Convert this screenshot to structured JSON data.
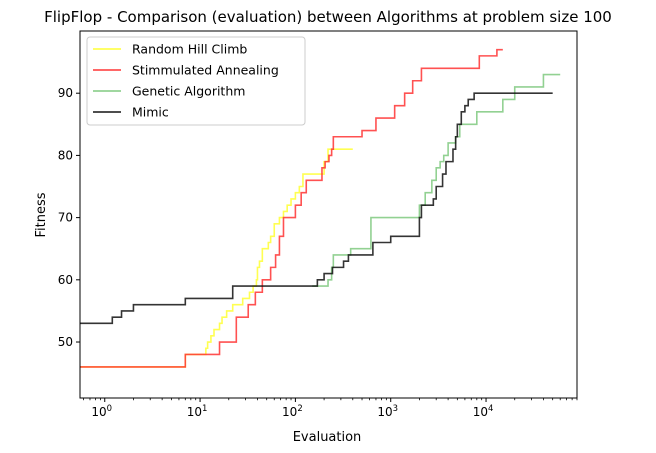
{
  "chart_data": {
    "type": "line",
    "title": "FlipFlop - Comparison (evaluation) between Algorithms at problem size 100",
    "xlabel": "Evaluation",
    "ylabel": "Fitness",
    "xscale": "log",
    "xlim": [
      0.55,
      90000
    ],
    "ylim": [
      41,
      100
    ],
    "yticks": [
      50,
      60,
      70,
      80,
      90
    ],
    "ytick_labels": [
      "50",
      "60",
      "70",
      "80",
      "90"
    ],
    "xticks": [
      1,
      10,
      100,
      1000,
      10000
    ],
    "xtick_labels": [
      {
        "base": "10",
        "exp": "0"
      },
      {
        "base": "10",
        "exp": "1"
      },
      {
        "base": "10",
        "exp": "2"
      },
      {
        "base": "10",
        "exp": "3"
      },
      {
        "base": "10",
        "exp": "4"
      }
    ],
    "grid": false,
    "legend_position": "top-left",
    "series": [
      {
        "name": "Random Hill Climb",
        "color": "#ffff33",
        "points": [
          [
            0.55,
            46
          ],
          [
            6,
            46
          ],
          [
            7,
            48
          ],
          [
            11,
            48
          ],
          [
            11.5,
            49
          ],
          [
            12,
            50
          ],
          [
            13,
            51
          ],
          [
            14,
            52
          ],
          [
            16,
            53
          ],
          [
            17,
            54
          ],
          [
            19,
            55
          ],
          [
            22,
            56
          ],
          [
            26,
            56
          ],
          [
            28,
            57
          ],
          [
            33,
            58
          ],
          [
            36,
            59
          ],
          [
            39,
            60
          ],
          [
            40,
            62
          ],
          [
            42,
            63
          ],
          [
            45,
            65
          ],
          [
            52,
            66
          ],
          [
            55,
            67
          ],
          [
            60,
            69
          ],
          [
            68,
            70
          ],
          [
            75,
            71
          ],
          [
            82,
            72
          ],
          [
            90,
            73
          ],
          [
            100,
            74
          ],
          [
            110,
            75
          ],
          [
            120,
            77
          ],
          [
            180,
            77
          ],
          [
            200,
            79
          ],
          [
            220,
            81
          ],
          [
            400,
            81
          ]
        ]
      },
      {
        "name": "Stimmulated Annealing",
        "color": "#ff3333",
        "points": [
          [
            0.55,
            46
          ],
          [
            6.3,
            46
          ],
          [
            7,
            48
          ],
          [
            15,
            48
          ],
          [
            16,
            50
          ],
          [
            22,
            50
          ],
          [
            24,
            54
          ],
          [
            30,
            54
          ],
          [
            32,
            56
          ],
          [
            38,
            58
          ],
          [
            45,
            60
          ],
          [
            55,
            62
          ],
          [
            62,
            64
          ],
          [
            68,
            67
          ],
          [
            75,
            70
          ],
          [
            95,
            70
          ],
          [
            100,
            72
          ],
          [
            115,
            74
          ],
          [
            130,
            76
          ],
          [
            160,
            76
          ],
          [
            190,
            78
          ],
          [
            205,
            79
          ],
          [
            225,
            80
          ],
          [
            240,
            81
          ],
          [
            250,
            83
          ],
          [
            440,
            83
          ],
          [
            500,
            84
          ],
          [
            650,
            84
          ],
          [
            700,
            86
          ],
          [
            1000,
            86
          ],
          [
            1100,
            88
          ],
          [
            1300,
            88
          ],
          [
            1400,
            90
          ],
          [
            1600,
            90
          ],
          [
            1700,
            92
          ],
          [
            2000,
            92
          ],
          [
            2100,
            94
          ],
          [
            8000,
            94
          ],
          [
            8500,
            96
          ],
          [
            12000,
            96
          ],
          [
            13000,
            97
          ],
          [
            15000,
            97
          ]
        ]
      },
      {
        "name": "Genetic Algorithm",
        "color": "#7fc97f",
        "points": [
          [
            150,
            59
          ],
          [
            200,
            59
          ],
          [
            220,
            60
          ],
          [
            240,
            62
          ],
          [
            250,
            64
          ],
          [
            350,
            64
          ],
          [
            380,
            65
          ],
          [
            600,
            65
          ],
          [
            620,
            70
          ],
          [
            1800,
            70
          ],
          [
            2000,
            72
          ],
          [
            2300,
            74
          ],
          [
            2700,
            76
          ],
          [
            3000,
            78
          ],
          [
            3300,
            79
          ],
          [
            3600,
            80
          ],
          [
            4000,
            82
          ],
          [
            4800,
            83
          ],
          [
            5300,
            85
          ],
          [
            7500,
            85
          ],
          [
            8000,
            87
          ],
          [
            13000,
            87
          ],
          [
            15000,
            89
          ],
          [
            19000,
            89
          ],
          [
            20000,
            91
          ],
          [
            35000,
            91
          ],
          [
            40000,
            93
          ],
          [
            60000,
            93
          ]
        ]
      },
      {
        "name": "Mimic",
        "color": "#111111",
        "points": [
          [
            0.55,
            53
          ],
          [
            1,
            53
          ],
          [
            1.2,
            54
          ],
          [
            1.5,
            55
          ],
          [
            2,
            56
          ],
          [
            6,
            56
          ],
          [
            7,
            57
          ],
          [
            20,
            57
          ],
          [
            22,
            59
          ],
          [
            160,
            59
          ],
          [
            170,
            60
          ],
          [
            200,
            61
          ],
          [
            240,
            61
          ],
          [
            245,
            62
          ],
          [
            300,
            62
          ],
          [
            320,
            63
          ],
          [
            360,
            64
          ],
          [
            600,
            64
          ],
          [
            650,
            66
          ],
          [
            900,
            66
          ],
          [
            1000,
            67
          ],
          [
            1900,
            67
          ],
          [
            2000,
            70
          ],
          [
            2100,
            72
          ],
          [
            2600,
            72
          ],
          [
            2800,
            73
          ],
          [
            3000,
            75
          ],
          [
            3300,
            75
          ],
          [
            3500,
            77
          ],
          [
            3800,
            79
          ],
          [
            4300,
            79
          ],
          [
            4500,
            81
          ],
          [
            4800,
            83
          ],
          [
            5000,
            85
          ],
          [
            5500,
            87
          ],
          [
            6000,
            88
          ],
          [
            6500,
            89
          ],
          [
            7500,
            90
          ],
          [
            50000,
            90
          ]
        ]
      }
    ]
  }
}
